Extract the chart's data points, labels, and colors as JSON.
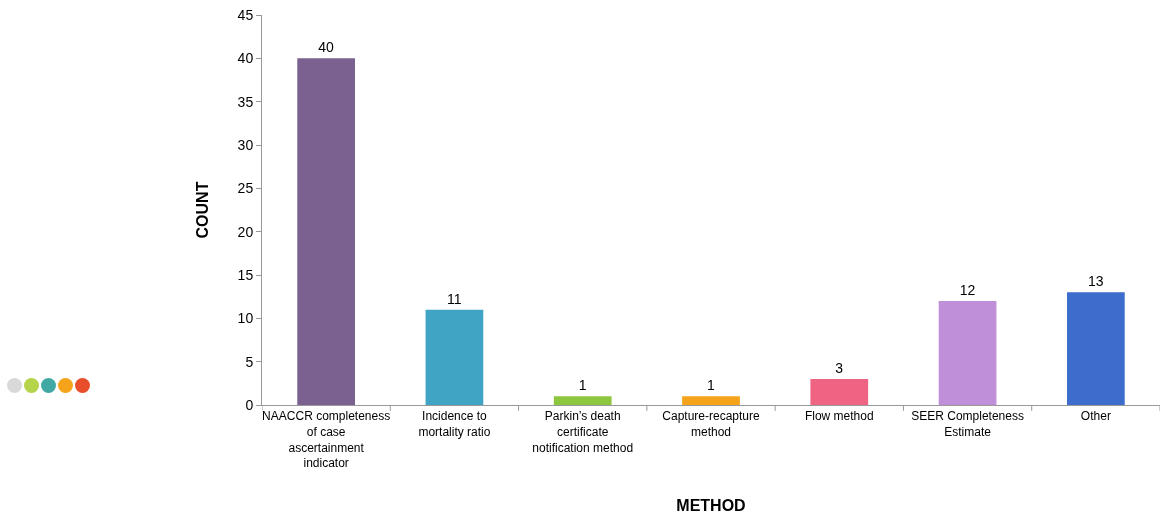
{
  "chart_data": {
    "type": "bar",
    "xlabel": "METHOD",
    "ylabel": "COUNT",
    "categories": [
      "NAACCR completeness of case ascertainment indicator",
      "Incidence to mortality ratio",
      "Parkin’s death certificate notification method",
      "Capture-recapture method",
      "Flow method",
      "SEER Completeness Estimate",
      "Other"
    ],
    "values": [
      40,
      11,
      1,
      1,
      3,
      12,
      13
    ],
    "colors": [
      "#7b6190",
      "#40a4c4",
      "#8dc63f",
      "#f5a31a",
      "#ef6483",
      "#bf8fd9",
      "#3c6dcc"
    ],
    "ylim": [
      0,
      45
    ],
    "yticks": [
      0,
      5,
      10,
      15,
      20,
      25,
      30,
      35,
      40,
      45
    ],
    "grid": false,
    "legend": false,
    "data_labels": true
  }
}
